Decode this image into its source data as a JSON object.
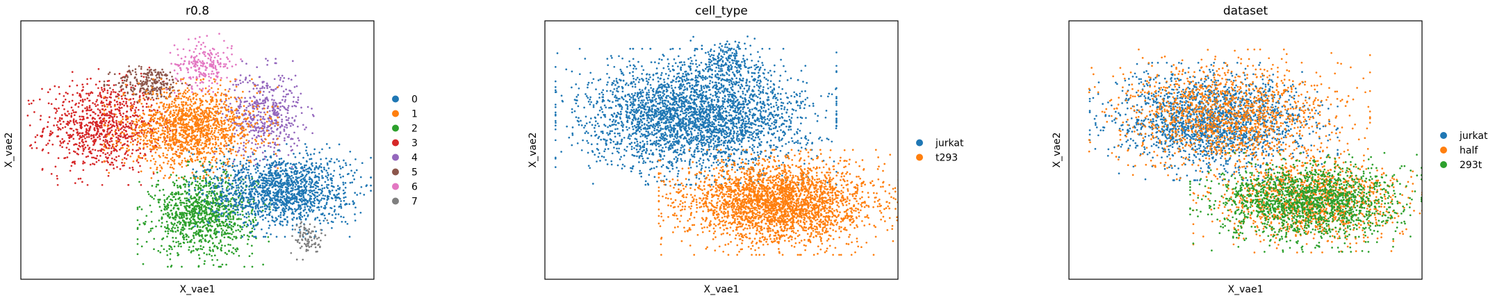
{
  "chart_data": [
    {
      "type": "scatter",
      "title": "r0.8",
      "xlabel": "X_vae1",
      "ylabel": "X_vae2",
      "grid": false,
      "ticks": false,
      "legend_position": "right",
      "legend": [
        {
          "label": "0",
          "color": "#1f77b4"
        },
        {
          "label": "1",
          "color": "#ff7f0e"
        },
        {
          "label": "2",
          "color": "#2ca02c"
        },
        {
          "label": "3",
          "color": "#d62728"
        },
        {
          "label": "4",
          "color": "#9467bd"
        },
        {
          "label": "5",
          "color": "#8c564b"
        },
        {
          "label": "6",
          "color": "#e377c2"
        },
        {
          "label": "7",
          "color": "#7f7f7f"
        }
      ],
      "clusters": [
        {
          "category": "3",
          "cx": 0.2,
          "cy": 0.6,
          "sx": 0.09,
          "sy": 0.095,
          "n": 900
        },
        {
          "category": "5",
          "cx": 0.35,
          "cy": 0.78,
          "sx": 0.055,
          "sy": 0.035,
          "n": 250
        },
        {
          "category": "6",
          "cx": 0.52,
          "cy": 0.86,
          "sx": 0.045,
          "sy": 0.05,
          "n": 220
        },
        {
          "category": "4",
          "cx": 0.71,
          "cy": 0.65,
          "sx": 0.06,
          "sy": 0.09,
          "n": 500
        },
        {
          "category": "1",
          "cx": 0.48,
          "cy": 0.59,
          "sx": 0.105,
          "sy": 0.08,
          "n": 1500
        },
        {
          "category": "2",
          "cx": 0.52,
          "cy": 0.23,
          "sx": 0.08,
          "sy": 0.085,
          "n": 1100
        },
        {
          "category": "0",
          "cx": 0.76,
          "cy": 0.33,
          "sx": 0.11,
          "sy": 0.075,
          "n": 1500
        },
        {
          "category": "7",
          "cx": 0.85,
          "cy": 0.13,
          "sx": 0.025,
          "sy": 0.035,
          "n": 90
        }
      ]
    },
    {
      "type": "scatter",
      "title": "cell_type",
      "xlabel": "X_vae1",
      "ylabel": "X_vae2",
      "grid": false,
      "ticks": false,
      "legend_position": "right",
      "legend": [
        {
          "label": "jurkat",
          "color": "#1f77b4"
        },
        {
          "label": "t293",
          "color": "#ff7f0e"
        }
      ],
      "clusters": [
        {
          "category": "jurkat",
          "cx": 0.42,
          "cy": 0.64,
          "sx": 0.17,
          "sy": 0.11,
          "n": 3200
        },
        {
          "category": "jurkat",
          "cx": 0.52,
          "cy": 0.87,
          "sx": 0.045,
          "sy": 0.045,
          "n": 200
        },
        {
          "category": "t293",
          "cx": 0.68,
          "cy": 0.28,
          "sx": 0.145,
          "sy": 0.085,
          "n": 2900
        }
      ]
    },
    {
      "type": "scatter",
      "title": "dataset",
      "xlabel": "X_vae1",
      "ylabel": "X_vae2",
      "grid": false,
      "ticks": false,
      "legend_position": "right",
      "legend": [
        {
          "label": "jurkat",
          "color": "#1f77b4"
        },
        {
          "label": "half",
          "color": "#ff7f0e"
        },
        {
          "label": "293t",
          "color": "#2ca02c"
        }
      ],
      "clusters": [
        {
          "category": "jurkat",
          "cx": 0.4,
          "cy": 0.62,
          "sx": 0.15,
          "sy": 0.095,
          "n": 1900
        },
        {
          "category": "half",
          "cx": 0.45,
          "cy": 0.65,
          "sx": 0.17,
          "sy": 0.105,
          "n": 1400
        },
        {
          "category": "half",
          "cx": 0.7,
          "cy": 0.29,
          "sx": 0.14,
          "sy": 0.085,
          "n": 1200
        },
        {
          "category": "293t",
          "cx": 0.69,
          "cy": 0.28,
          "sx": 0.14,
          "sy": 0.08,
          "n": 1700
        }
      ]
    }
  ]
}
